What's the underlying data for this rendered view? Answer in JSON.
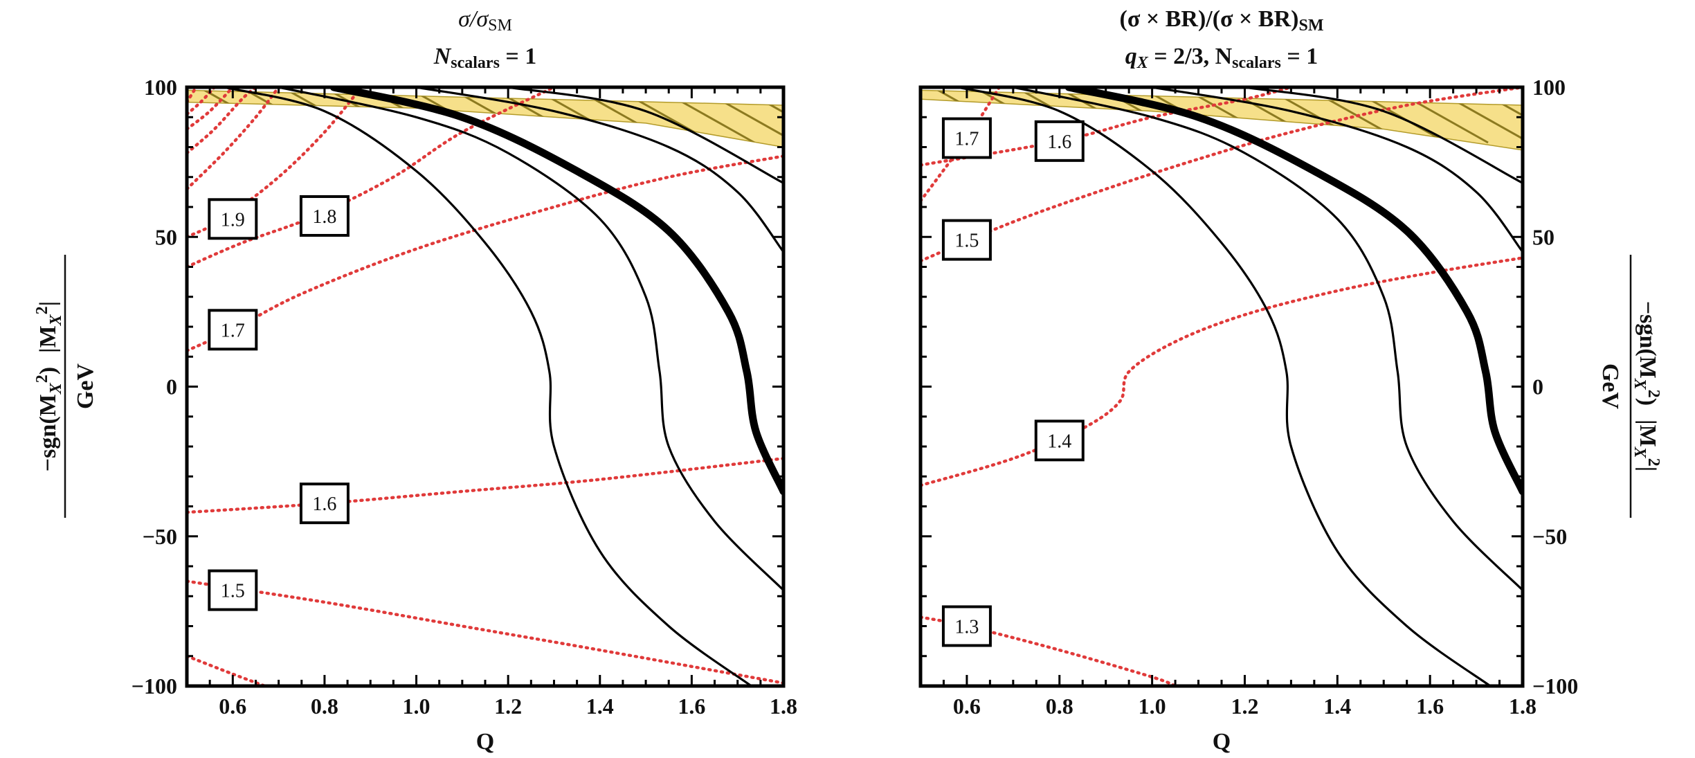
{
  "figure": {
    "left_title_line1": "σ/σ",
    "left_title_line1_sub": "SM",
    "left_title_line2": "N",
    "left_title_line2_sub": "scalars",
    "left_title_line2_rest": " = 1",
    "right_title_line1": "(σ × BR)/(σ × BR)",
    "right_title_line1_sub": "SM",
    "right_title_line2_a": "q",
    "right_title_line2_a_sub": "X",
    "right_title_line2_b": " = 2/3, N",
    "right_title_line2_b_sub": "scalars",
    "right_title_line2_c": " = 1",
    "ylabel_main": "−sgn(M",
    "ylabel_sub": "X",
    "ylabel_sup": "2",
    "ylabel_mid": ")",
    "ylabel_root": "|M",
    "ylabel_root_end": "|",
    "ylabel_unit": "GeV",
    "xlabel": "Q"
  },
  "colors": {
    "contour_red": "#e03a3a",
    "black_curve": "#000000",
    "band_fill": "#f6e08a",
    "band_hatch": "#8c7a20"
  },
  "chart_data": [
    {
      "type": "contour",
      "panel": "left",
      "xlim": [
        0.5,
        1.8
      ],
      "ylim": [
        -100,
        100
      ],
      "x_ticks": [
        0.6,
        0.8,
        1.0,
        1.2,
        1.4,
        1.6,
        1.8
      ],
      "x_tick_labels": [
        "0.6",
        "0.8",
        "1.0",
        "1.2",
        "1.4",
        "1.6",
        "1.8"
      ],
      "y_ticks": [
        -100,
        -50,
        0,
        50,
        100
      ],
      "y_tick_labels": [
        "−100",
        "−50",
        "0",
        "50",
        "100"
      ],
      "y_axis_side": "left",
      "contour_labels": [
        {
          "text": "1.9",
          "x": 0.6,
          "y": 56
        },
        {
          "text": "1.8",
          "x": 0.8,
          "y": 57
        },
        {
          "text": "1.7",
          "x": 0.6,
          "y": 19
        },
        {
          "text": "1.6",
          "x": 0.8,
          "y": -39
        },
        {
          "text": "1.5",
          "x": 0.6,
          "y": -68
        }
      ],
      "red_contours": [
        {
          "level": "1.9",
          "points": [
            [
              0.5,
              50
            ],
            [
              0.58,
              56
            ],
            [
              0.7,
              70
            ],
            [
              0.8,
              85
            ],
            [
              0.88,
              100
            ]
          ]
        },
        {
          "level": "1.8",
          "points": [
            [
              0.5,
              40
            ],
            [
              0.62,
              48
            ],
            [
              0.78,
              57
            ],
            [
              0.95,
              70
            ],
            [
              1.1,
              85
            ],
            [
              1.3,
              100
            ]
          ]
        },
        {
          "level": "1.7",
          "points": [
            [
              0.5,
              12
            ],
            [
              0.6,
              19
            ],
            [
              0.75,
              31
            ],
            [
              1.0,
              46
            ],
            [
              1.3,
              60
            ],
            [
              1.55,
              70
            ],
            [
              1.8,
              77
            ]
          ]
        },
        {
          "level": "1.6",
          "points": [
            [
              0.5,
              -42
            ],
            [
              0.8,
              -39
            ],
            [
              1.1,
              -35
            ],
            [
              1.4,
              -31
            ],
            [
              1.8,
              -24
            ]
          ]
        },
        {
          "level": "1.5",
          "points": [
            [
              0.5,
              -65
            ],
            [
              0.8,
              -72
            ],
            [
              1.1,
              -80
            ],
            [
              1.4,
              -88
            ],
            [
              1.8,
              -99
            ]
          ]
        },
        {
          "level": "",
          "points": [
            [
              0.5,
              -90
            ],
            [
              0.6,
              -96
            ],
            [
              0.67,
              -100
            ]
          ]
        },
        {
          "level": "",
          "points": [
            [
              0.5,
              66
            ],
            [
              0.58,
              78
            ],
            [
              0.65,
              90
            ],
            [
              0.7,
              100
            ]
          ]
        },
        {
          "level": "",
          "points": [
            [
              0.5,
              78
            ],
            [
              0.56,
              86
            ],
            [
              0.62,
              96
            ],
            [
              0.65,
              100
            ]
          ]
        },
        {
          "level": "",
          "points": [
            [
              0.5,
              86
            ],
            [
              0.55,
              92
            ],
            [
              0.6,
              100
            ]
          ]
        },
        {
          "level": "",
          "points": [
            [
              0.5,
              91
            ],
            [
              0.53,
              95
            ],
            [
              0.56,
              100
            ]
          ]
        },
        {
          "level": "",
          "points": [
            [
              0.5,
              95
            ],
            [
              0.52,
              100
            ]
          ]
        }
      ],
      "black_curves": [
        {
          "width": "thin",
          "points": [
            [
              0.58,
              100
            ],
            [
              0.8,
              92
            ],
            [
              1.0,
              72
            ],
            [
              1.15,
              48
            ],
            [
              1.25,
              25
            ],
            [
              1.29,
              5
            ],
            [
              1.3,
              -20
            ],
            [
              1.4,
              -55
            ],
            [
              1.55,
              -80
            ],
            [
              1.73,
              -100
            ]
          ]
        },
        {
          "width": "thin",
          "points": [
            [
              0.7,
              100
            ],
            [
              1.0,
              90
            ],
            [
              1.2,
              78
            ],
            [
              1.4,
              56
            ],
            [
              1.5,
              30
            ],
            [
              1.53,
              5
            ],
            [
              1.55,
              -20
            ],
            [
              1.65,
              -45
            ],
            [
              1.8,
              -68
            ]
          ]
        },
        {
          "width": "thick",
          "points": [
            [
              0.82,
              100
            ],
            [
              1.1,
              90
            ],
            [
              1.35,
              72
            ],
            [
              1.55,
              52
            ],
            [
              1.68,
              25
            ],
            [
              1.72,
              5
            ],
            [
              1.74,
              -15
            ],
            [
              1.8,
              -35
            ]
          ]
        },
        {
          "width": "thin",
          "points": [
            [
              1.0,
              100
            ],
            [
              1.3,
              92
            ],
            [
              1.55,
              80
            ],
            [
              1.7,
              65
            ],
            [
              1.8,
              45
            ]
          ]
        },
        {
          "width": "thin",
          "points": [
            [
              1.2,
              100
            ],
            [
              1.5,
              92
            ],
            [
              1.8,
              68
            ]
          ]
        }
      ],
      "excluded_band": {
        "top": [
          [
            0.5,
            99
          ],
          [
            1.8,
            94
          ]
        ],
        "bottom": [
          [
            0.5,
            95
          ],
          [
            1.0,
            93
          ],
          [
            1.5,
            88
          ],
          [
            1.8,
            80
          ]
        ]
      }
    },
    {
      "type": "contour",
      "panel": "right",
      "xlim": [
        0.5,
        1.8
      ],
      "ylim": [
        -100,
        100
      ],
      "x_ticks": [
        0.6,
        0.8,
        1.0,
        1.2,
        1.4,
        1.6,
        1.8
      ],
      "x_tick_labels": [
        "0.6",
        "0.8",
        "1.0",
        "1.2",
        "1.4",
        "1.6",
        "1.8"
      ],
      "y_ticks": [
        -100,
        -50,
        0,
        50,
        100
      ],
      "y_tick_labels": [
        "−100",
        "−50",
        "0",
        "50",
        "100"
      ],
      "y_axis_side": "right",
      "contour_labels": [
        {
          "text": "1.7",
          "x": 0.6,
          "y": 83
        },
        {
          "text": "1.6",
          "x": 0.8,
          "y": 82
        },
        {
          "text": "1.5",
          "x": 0.6,
          "y": 49
        },
        {
          "text": "1.4",
          "x": 0.8,
          "y": -18
        },
        {
          "text": "1.3",
          "x": 0.6,
          "y": -80
        }
      ],
      "red_contours": [
        {
          "level": "1.7",
          "points": [
            [
              0.5,
              62
            ],
            [
              0.6,
              83
            ],
            [
              0.67,
              100
            ]
          ]
        },
        {
          "level": "1.6",
          "points": [
            [
              0.5,
              74
            ],
            [
              0.8,
              82
            ],
            [
              1.0,
              90
            ],
            [
              1.2,
              96
            ],
            [
              1.3,
              100
            ]
          ]
        },
        {
          "level": "1.5",
          "points": [
            [
              0.5,
              42
            ],
            [
              0.7,
              55
            ],
            [
              0.9,
              66
            ],
            [
              1.1,
              76
            ],
            [
              1.3,
              85
            ],
            [
              1.55,
              94
            ],
            [
              1.8,
              100
            ]
          ]
        },
        {
          "level": "1.4",
          "points": [
            [
              0.5,
              -33
            ],
            [
              0.7,
              -24
            ],
            [
              0.85,
              -14
            ],
            [
              0.93,
              -5
            ],
            [
              0.95,
              5
            ],
            [
              1.05,
              15
            ],
            [
              1.2,
              24
            ],
            [
              1.4,
              32
            ],
            [
              1.6,
              38
            ],
            [
              1.8,
              43
            ]
          ]
        },
        {
          "level": "1.3",
          "points": [
            [
              0.5,
              -77
            ],
            [
              0.6,
              -80
            ],
            [
              0.8,
              -88
            ],
            [
              1.0,
              -97
            ],
            [
              1.05,
              -100
            ]
          ]
        }
      ],
      "black_curves": [
        {
          "width": "thin",
          "points": [
            [
              0.58,
              100
            ],
            [
              0.8,
              92
            ],
            [
              1.0,
              72
            ],
            [
              1.15,
              48
            ],
            [
              1.25,
              25
            ],
            [
              1.29,
              5
            ],
            [
              1.3,
              -20
            ],
            [
              1.4,
              -55
            ],
            [
              1.55,
              -80
            ],
            [
              1.73,
              -100
            ]
          ]
        },
        {
          "width": "thin",
          "points": [
            [
              0.7,
              100
            ],
            [
              1.0,
              90
            ],
            [
              1.2,
              78
            ],
            [
              1.4,
              56
            ],
            [
              1.5,
              30
            ],
            [
              1.53,
              5
            ],
            [
              1.55,
              -20
            ],
            [
              1.65,
              -45
            ],
            [
              1.8,
              -68
            ]
          ]
        },
        {
          "width": "thick",
          "points": [
            [
              0.82,
              100
            ],
            [
              1.1,
              90
            ],
            [
              1.35,
              72
            ],
            [
              1.55,
              52
            ],
            [
              1.68,
              25
            ],
            [
              1.72,
              5
            ],
            [
              1.74,
              -15
            ],
            [
              1.8,
              -35
            ]
          ]
        },
        {
          "width": "thin",
          "points": [
            [
              1.0,
              100
            ],
            [
              1.3,
              92
            ],
            [
              1.55,
              80
            ],
            [
              1.7,
              65
            ],
            [
              1.8,
              45
            ]
          ]
        },
        {
          "width": "thin",
          "points": [
            [
              1.2,
              100
            ],
            [
              1.5,
              92
            ],
            [
              1.8,
              68
            ]
          ]
        }
      ],
      "excluded_band": {
        "top": [
          [
            0.5,
            99
          ],
          [
            1.8,
            94
          ]
        ],
        "bottom": [
          [
            0.5,
            96
          ],
          [
            1.0,
            92
          ],
          [
            1.5,
            86
          ],
          [
            1.8,
            79
          ]
        ]
      }
    }
  ]
}
